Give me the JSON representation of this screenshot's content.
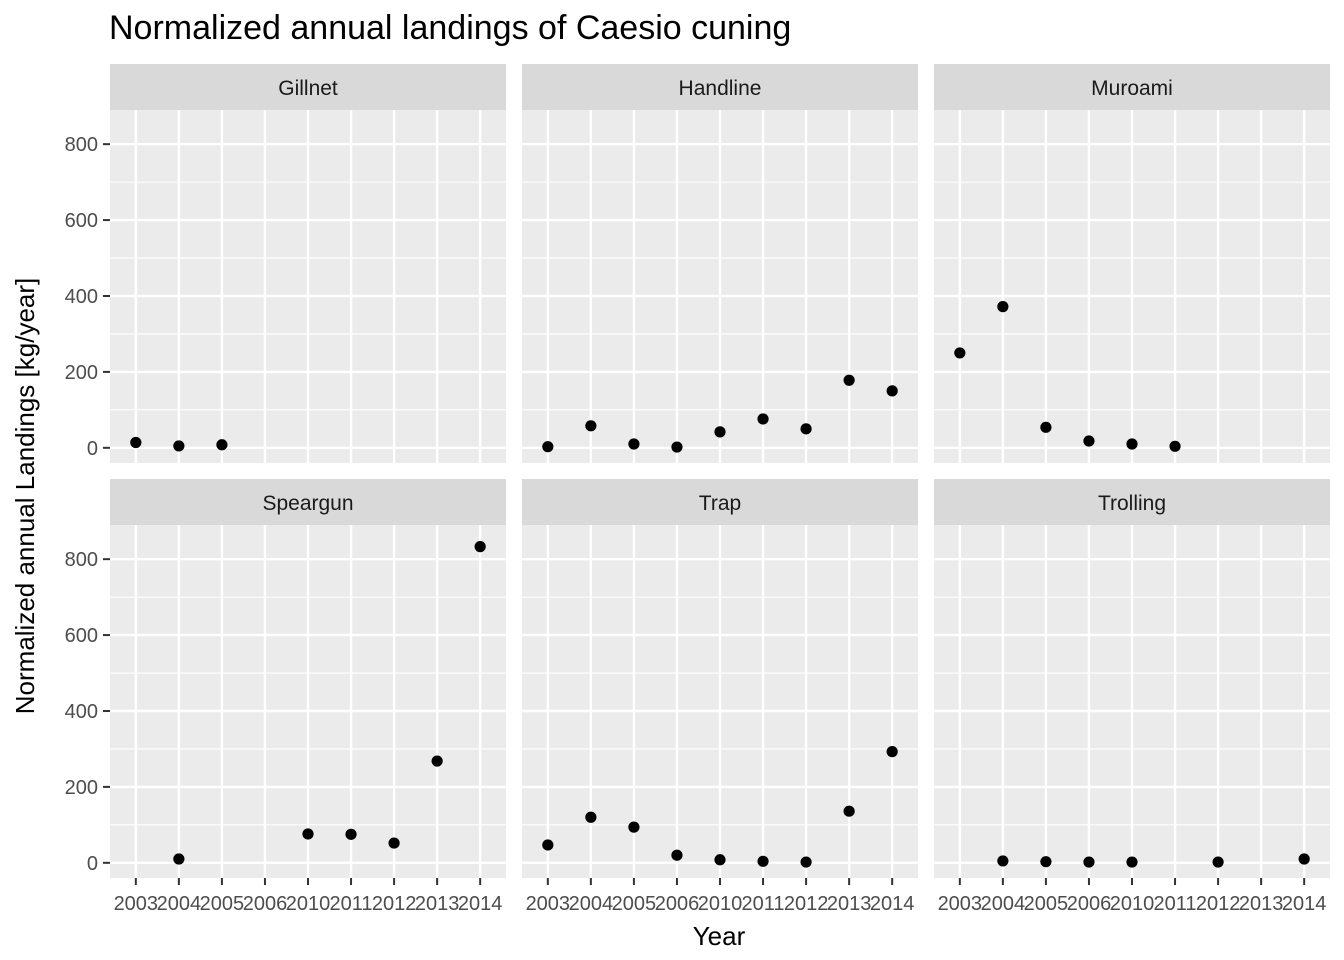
{
  "chart_data": {
    "type": "scatter",
    "title": "Normalized annual landings of Caesio cuning",
    "xlabel": "Year",
    "ylabel": "Normalized annual Landings [kg/year]",
    "x_categories": [
      "2003",
      "2004",
      "2005",
      "2006",
      "2010",
      "2011",
      "2012",
      "2013",
      "2014"
    ],
    "y_ticks": [
      0,
      200,
      400,
      600,
      800
    ],
    "ylim": [
      -40,
      890
    ],
    "grid": true,
    "point_color": "#000000",
    "panel_background": "#ebebeb",
    "strip_background": "#d9d9d9",
    "panels": [
      {
        "name": "Gillnet",
        "points": [
          {
            "x": "2003",
            "y": 14
          },
          {
            "x": "2004",
            "y": 5
          },
          {
            "x": "2005",
            "y": 8
          }
        ]
      },
      {
        "name": "Handline",
        "points": [
          {
            "x": "2003",
            "y": 3
          },
          {
            "x": "2004",
            "y": 58
          },
          {
            "x": "2005",
            "y": 10
          },
          {
            "x": "2006",
            "y": 2
          },
          {
            "x": "2010",
            "y": 42
          },
          {
            "x": "2011",
            "y": 76
          },
          {
            "x": "2012",
            "y": 50
          },
          {
            "x": "2013",
            "y": 178
          },
          {
            "x": "2014",
            "y": 150
          }
        ]
      },
      {
        "name": "Muroami",
        "points": [
          {
            "x": "2003",
            "y": 250
          },
          {
            "x": "2004",
            "y": 372
          },
          {
            "x": "2005",
            "y": 54
          },
          {
            "x": "2006",
            "y": 18
          },
          {
            "x": "2010",
            "y": 10
          },
          {
            "x": "2011",
            "y": 4
          }
        ]
      },
      {
        "name": "Speargun",
        "points": [
          {
            "x": "2004",
            "y": 10
          },
          {
            "x": "2010",
            "y": 76
          },
          {
            "x": "2011",
            "y": 75
          },
          {
            "x": "2012",
            "y": 52
          },
          {
            "x": "2013",
            "y": 268
          },
          {
            "x": "2014",
            "y": 833
          }
        ]
      },
      {
        "name": "Trap",
        "points": [
          {
            "x": "2003",
            "y": 47
          },
          {
            "x": "2004",
            "y": 120
          },
          {
            "x": "2005",
            "y": 94
          },
          {
            "x": "2006",
            "y": 20
          },
          {
            "x": "2010",
            "y": 8
          },
          {
            "x": "2011",
            "y": 4
          },
          {
            "x": "2012",
            "y": 2
          },
          {
            "x": "2013",
            "y": 136
          },
          {
            "x": "2014",
            "y": 293
          }
        ]
      },
      {
        "name": "Trolling",
        "points": [
          {
            "x": "2004",
            "y": 5
          },
          {
            "x": "2005",
            "y": 3
          },
          {
            "x": "2006",
            "y": 2
          },
          {
            "x": "2010",
            "y": 2
          },
          {
            "x": "2012",
            "y": 2
          },
          {
            "x": "2014",
            "y": 10
          }
        ]
      }
    ]
  }
}
